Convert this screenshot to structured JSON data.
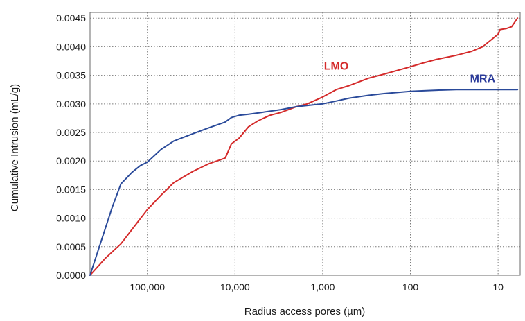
{
  "chart_data": {
    "type": "line",
    "title": "",
    "xlabel": "Radius access pores (µm)",
    "ylabel": "Cumulative Intrusion (mL/g)",
    "x_scale": "log",
    "x_reversed": true,
    "xlim": [
      450000,
      5.6
    ],
    "ylim": [
      0,
      0.0046
    ],
    "grid": true,
    "x_ticks": [
      {
        "value": 100000,
        "label": "100,000"
      },
      {
        "value": 10000,
        "label": "10,000"
      },
      {
        "value": 1000,
        "label": "1,000"
      },
      {
        "value": 100,
        "label": "100"
      },
      {
        "value": 10,
        "label": "10"
      }
    ],
    "y_ticks": [
      {
        "value": 0.0,
        "label": "0.0000"
      },
      {
        "value": 0.0005,
        "label": "0.0005"
      },
      {
        "value": 0.001,
        "label": "0.0010"
      },
      {
        "value": 0.0015,
        "label": "0.0015"
      },
      {
        "value": 0.002,
        "label": "0.0020"
      },
      {
        "value": 0.0025,
        "label": "0.0025"
      },
      {
        "value": 0.003,
        "label": "0.0030"
      },
      {
        "value": 0.0035,
        "label": "0.0035"
      },
      {
        "value": 0.004,
        "label": "0.0040"
      },
      {
        "value": 0.0045,
        "label": "0.0045"
      }
    ],
    "series": [
      {
        "name": "LMO",
        "color": "#d42a2a",
        "x": [
          450000,
          300000,
          200000,
          150000,
          100000,
          70000,
          50000,
          30000,
          20000,
          13000,
          12500,
          11000,
          9000,
          7000,
          5500,
          4000,
          3000,
          2000,
          1500,
          1000,
          700,
          500,
          300,
          200,
          100,
          70,
          50,
          30,
          20,
          15,
          12,
          10,
          9.5,
          8,
          7,
          6
        ],
        "y": [
          0.0,
          0.0003,
          0.00055,
          0.0008,
          0.00115,
          0.0014,
          0.00162,
          0.00182,
          0.00195,
          0.00205,
          0.0021,
          0.0023,
          0.0024,
          0.0026,
          0.0027,
          0.0028,
          0.00285,
          0.00295,
          0.003,
          0.00312,
          0.00325,
          0.00332,
          0.00345,
          0.00352,
          0.00365,
          0.00372,
          0.00378,
          0.00385,
          0.00392,
          0.004,
          0.00412,
          0.00422,
          0.0043,
          0.00432,
          0.00435,
          0.0045
        ]
      },
      {
        "name": "MRA",
        "color": "#2a4a9a",
        "x": [
          450000,
          250000,
          200000,
          150000,
          120000,
          100000,
          70000,
          50000,
          30000,
          20000,
          13000,
          11000,
          9000,
          7000,
          5000,
          3000,
          2000,
          1000,
          700,
          500,
          300,
          200,
          100,
          70,
          50,
          30,
          20,
          10,
          6
        ],
        "y": [
          0.0,
          0.0012,
          0.0016,
          0.0018,
          0.00192,
          0.00198,
          0.0022,
          0.00235,
          0.00248,
          0.00258,
          0.00268,
          0.00276,
          0.0028,
          0.00282,
          0.00285,
          0.0029,
          0.00295,
          0.003,
          0.00305,
          0.0031,
          0.00315,
          0.00318,
          0.00322,
          0.00323,
          0.00324,
          0.00325,
          0.00325,
          0.00325,
          0.00325
        ]
      }
    ],
    "annotations": [
      {
        "text": "LMO",
        "series": "LMO",
        "color": "#d42a2a",
        "x": 700,
        "y": 0.0036
      },
      {
        "text": "MRA",
        "series": "MRA",
        "color": "#2a3a9a",
        "x": 15,
        "y": 0.00338
      }
    ]
  }
}
